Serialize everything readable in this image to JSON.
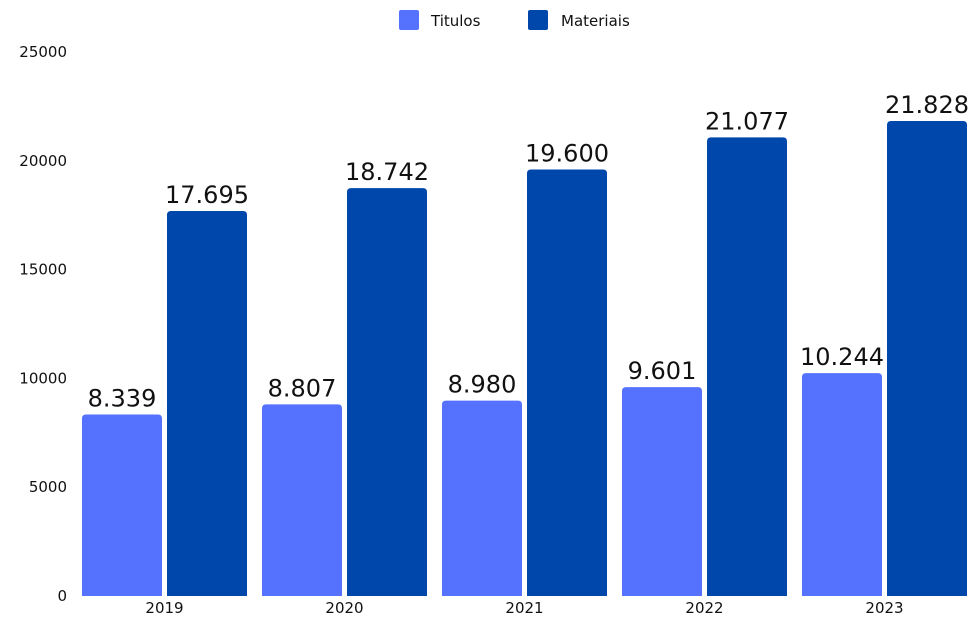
{
  "chart_data": {
    "type": "bar",
    "categories": [
      "2019",
      "2020",
      "2021",
      "2022",
      "2023"
    ],
    "series": [
      {
        "name": "Titulos",
        "color": "#5572FF",
        "values": [
          8339,
          8807,
          8980,
          9601,
          10244
        ],
        "labels": [
          "8.339",
          "8.807",
          "8.980",
          "9.601",
          "10.244"
        ]
      },
      {
        "name": "Materiais",
        "color": "#0047AB",
        "values": [
          17695,
          18742,
          19600,
          21077,
          21828
        ],
        "labels": [
          "17.695",
          "18.742",
          "19.600",
          "21.077",
          "21.828"
        ]
      }
    ],
    "yticks": [
      0,
      5000,
      10000,
      15000,
      20000,
      25000
    ],
    "ytick_labels": [
      "0",
      "5000",
      "10000",
      "15000",
      "20000",
      "25000"
    ],
    "ylim": [
      0,
      25000
    ],
    "grid": false,
    "legend_position": "top-center"
  }
}
